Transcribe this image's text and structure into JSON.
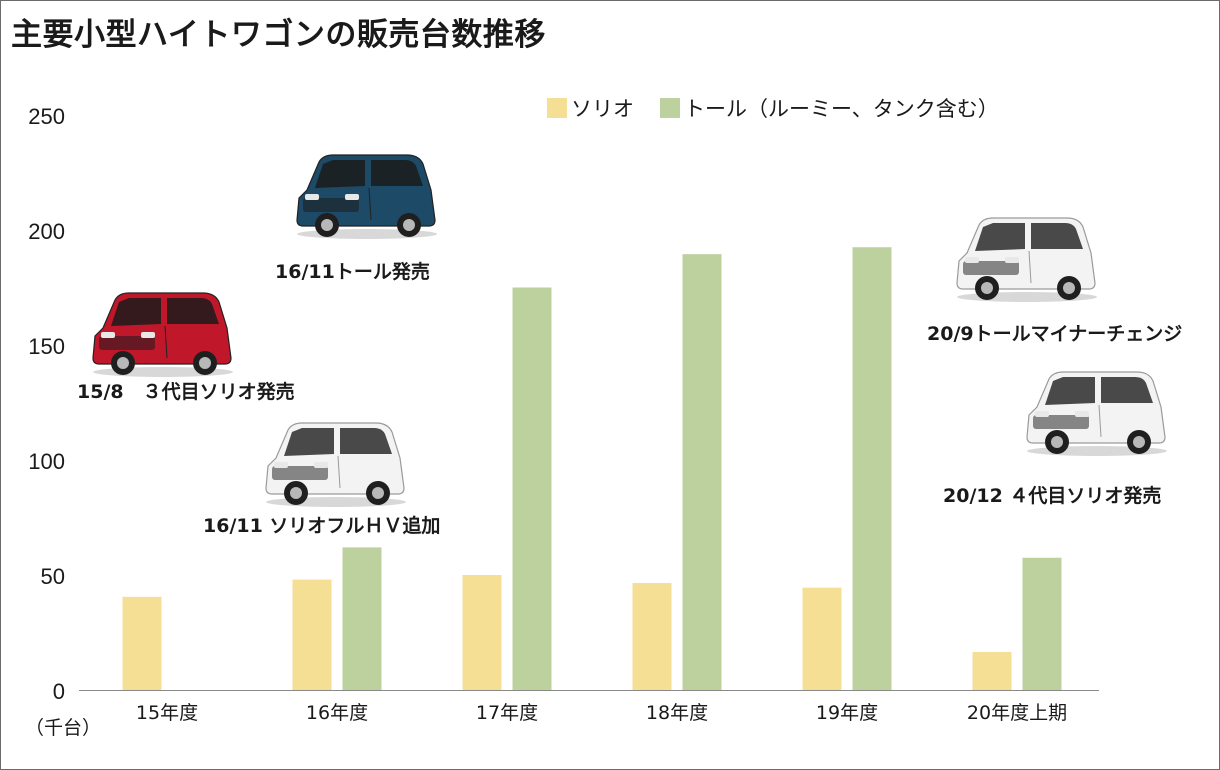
{
  "title": "主要小型ハイトワゴンの販売台数推移",
  "unit_label": "（千台）",
  "events": [
    {
      "id": "e1",
      "label": "16/11トール発売",
      "car_color": "#1d4a66"
    },
    {
      "id": "e2",
      "label": "15/8　３代目ソリオ発売",
      "car_color": "#c0182a"
    },
    {
      "id": "e3",
      "label": "16/11 ソリオフルＨＶ追加",
      "car_color": "#f3f3f3"
    },
    {
      "id": "e4",
      "label": "20/9トールマイナーチェンジ",
      "car_color": "#f3f3f3"
    },
    {
      "id": "e5",
      "label": "20/12 ４代目ソリオ発売",
      "car_color": "#f3f3f3"
    }
  ],
  "colors": {
    "solio": "#f5df94",
    "tall": "#bcd19e"
  },
  "chart_data": {
    "type": "bar",
    "categories": [
      "15年度",
      "16年度",
      "17年度",
      "18年度",
      "19年度",
      "20年度上期"
    ],
    "series": [
      {
        "name": "ソリオ",
        "values": [
          40.5,
          48,
          50,
          46.5,
          44.5,
          16.5
        ]
      },
      {
        "name": "トール（ルーミー、タンク含む）",
        "values": [
          null,
          62,
          175,
          189.5,
          192.5,
          57.5
        ]
      }
    ],
    "yticks": [
      0,
      50,
      100,
      150,
      200,
      250
    ],
    "ylim": [
      0,
      250
    ],
    "grid": false,
    "legend": "top-right"
  }
}
